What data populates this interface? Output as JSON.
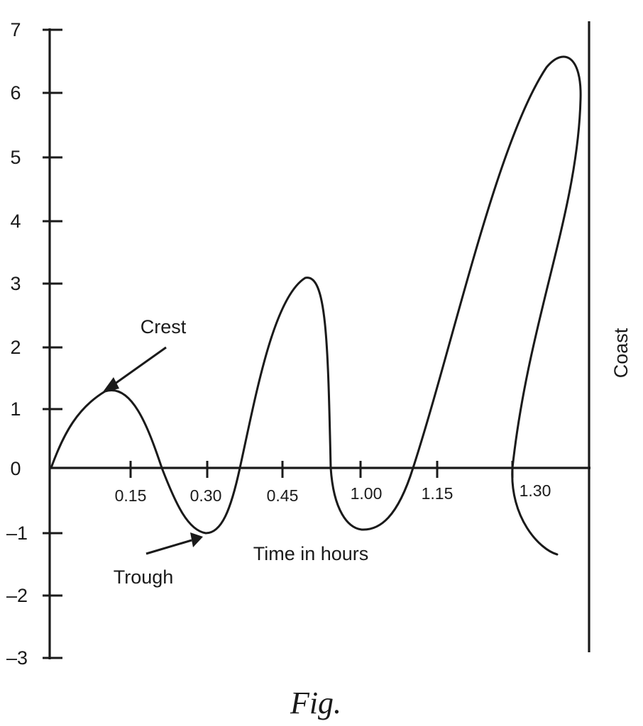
{
  "chart_data": {
    "type": "line",
    "xlabel": "Time in hours",
    "ylabel": "",
    "x_ticks": [
      "0.15",
      "0.30",
      "0.45",
      "1.00",
      "1.15",
      "1.30"
    ],
    "y_ticks": [
      "7",
      "6",
      "5",
      "4",
      "3",
      "2",
      "1",
      "0",
      "–1",
      "–2",
      "–3"
    ],
    "ylim": [
      -3,
      7
    ],
    "grid": false,
    "coast_label": "Coast",
    "annotations": {
      "crest": "Crest",
      "trough": "Trough"
    },
    "wave_extrema": [
      {
        "label": "crest",
        "y": 1.25
      },
      {
        "label": "trough",
        "y": -1.0
      },
      {
        "label": "crest",
        "y": 3.1
      },
      {
        "label": "trough",
        "y": -0.95
      },
      {
        "label": "crest",
        "y": 6.55
      },
      {
        "label": "end",
        "y": -1.35
      }
    ]
  },
  "caption": "Fig."
}
